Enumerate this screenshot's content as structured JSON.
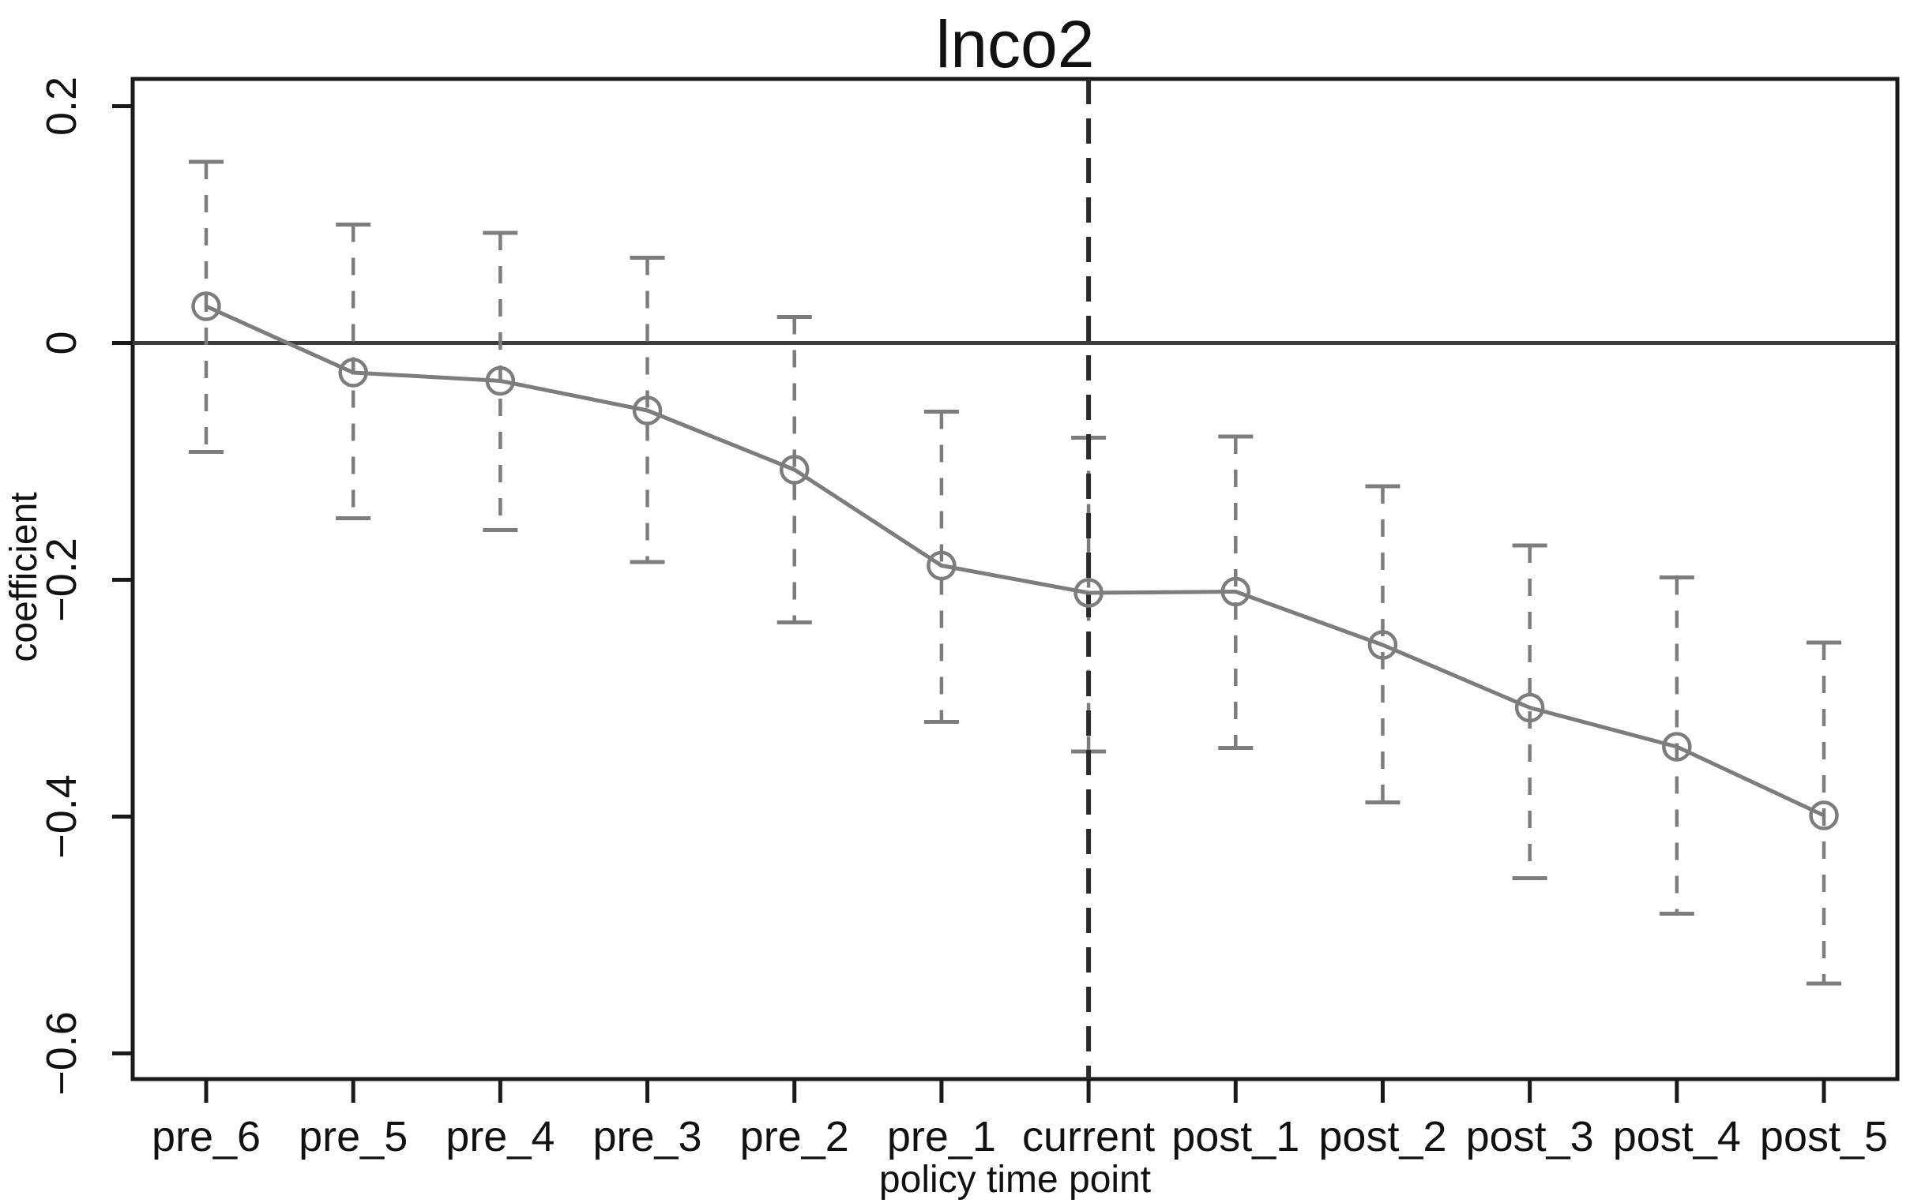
{
  "chart_data": {
    "type": "line",
    "title": "lnco2",
    "xlabel": "policy time point",
    "ylabel": "coefficient",
    "categories": [
      "pre_6",
      "pre_5",
      "pre_4",
      "pre_3",
      "pre_2",
      "pre_1",
      "current",
      "post_1",
      "post_2",
      "post_3",
      "post_4",
      "post_5"
    ],
    "series": [
      {
        "name": "coefficient",
        "values": [
          0.031,
          -0.025,
          -0.032,
          -0.057,
          -0.107,
          -0.188,
          -0.211,
          -0.21,
          -0.255,
          -0.308,
          -0.341,
          -0.399
        ]
      },
      {
        "name": "ci_upper",
        "values": [
          0.153,
          0.1,
          0.093,
          0.072,
          0.022,
          -0.058,
          -0.08,
          -0.079,
          -0.121,
          -0.171,
          -0.198,
          -0.253
        ]
      },
      {
        "name": "ci_lower",
        "values": [
          -0.092,
          -0.148,
          -0.158,
          -0.185,
          -0.236,
          -0.32,
          -0.345,
          -0.342,
          -0.388,
          -0.452,
          -0.482,
          -0.541
        ]
      }
    ],
    "y_ticks": [
      0.2,
      0,
      -0.2,
      -0.4,
      -0.6
    ],
    "y_tick_labels": [
      "0.2",
      "0",
      "−0.2",
      "−0.4",
      "−0.6"
    ],
    "ylim": [
      -0.62,
      0.22
    ],
    "grid": false,
    "legend": false,
    "reference_lines": {
      "horizontal_at_value": 0,
      "vertical_at_category": "current"
    },
    "styles": {
      "series_color": "#7d7d7d",
      "frame_color": "#1a1a1a",
      "zero_line_color": "#3c3c3c",
      "event_line_color": "#2b2b2b",
      "marker": "open-circle",
      "ci_style": "dashed-with-caps"
    }
  }
}
